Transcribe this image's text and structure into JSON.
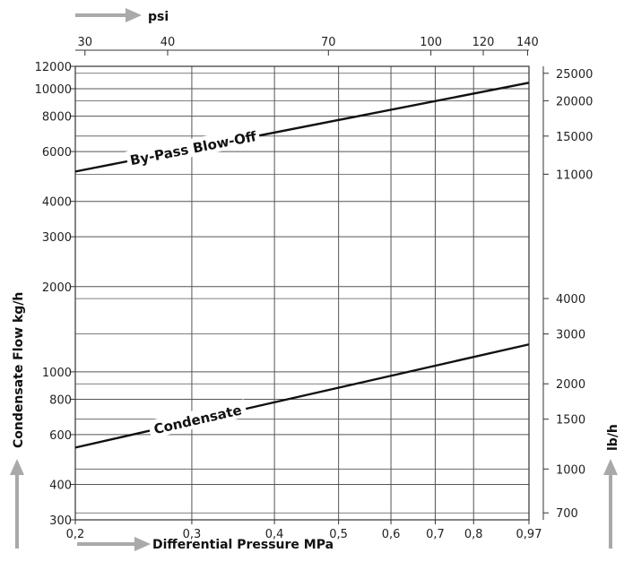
{
  "chart_data": {
    "type": "line",
    "x_scale": "log",
    "y_scale": "log",
    "x_range": [
      0.2,
      0.97
    ],
    "y_range": [
      300,
      12000
    ],
    "xlabel": "Differential Pressure MPa",
    "ylabel": "Condensate Flow kg/h",
    "top_axis_label": "psi",
    "right_axis_label": "lb/h",
    "x_ticks": [
      {
        "value": 0.2,
        "label": "0,2"
      },
      {
        "value": 0.3,
        "label": "0,3"
      },
      {
        "value": 0.4,
        "label": "0,4"
      },
      {
        "value": 0.5,
        "label": "0,5"
      },
      {
        "value": 0.6,
        "label": "0,6"
      },
      {
        "value": 0.7,
        "label": "0,7"
      },
      {
        "value": 0.8,
        "label": "0,8"
      },
      {
        "value": 0.97,
        "label": "0,97"
      }
    ],
    "y_ticks": [
      {
        "value": 300,
        "label": "300"
      },
      {
        "value": 400,
        "label": "400"
      },
      {
        "value": 600,
        "label": "600"
      },
      {
        "value": 800,
        "label": "800"
      },
      {
        "value": 1000,
        "label": "1000"
      },
      {
        "value": 2000,
        "label": "2000"
      },
      {
        "value": 3000,
        "label": "3000"
      },
      {
        "value": 4000,
        "label": "4000"
      },
      {
        "value": 6000,
        "label": "6000"
      },
      {
        "value": 8000,
        "label": "8000"
      },
      {
        "value": 10000,
        "label": "10000"
      },
      {
        "value": 12000,
        "label": "12000"
      }
    ],
    "top_ticks": [
      {
        "value": 30,
        "label": "30"
      },
      {
        "value": 40,
        "label": "40"
      },
      {
        "value": 70,
        "label": "70"
      },
      {
        "value": 100,
        "label": "100"
      },
      {
        "value": 120,
        "label": "120"
      },
      {
        "value": 140,
        "label": "140"
      }
    ],
    "right_ticks": [
      {
        "value": 700,
        "label": "700"
      },
      {
        "value": 1000,
        "label": "1000"
      },
      {
        "value": 1500,
        "label": "1500"
      },
      {
        "value": 2000,
        "label": "2000"
      },
      {
        "value": 3000,
        "label": "3000"
      },
      {
        "value": 4000,
        "label": "4000"
      },
      {
        "value": 11000,
        "label": "11000"
      },
      {
        "value": 15000,
        "label": "15000"
      },
      {
        "value": 20000,
        "label": "20000"
      },
      {
        "value": 25000,
        "label": "25000"
      }
    ],
    "series": [
      {
        "name": "By-Pass Blow-Off",
        "x": [
          0.2,
          0.97
        ],
        "y": [
          5100,
          10500
        ]
      },
      {
        "name": "Condensate",
        "x": [
          0.2,
          0.97
        ],
        "y": [
          540,
          1250
        ]
      }
    ],
    "grid": true
  },
  "colors": {
    "line": "#111111",
    "grid": "#555555",
    "arrow": "#a9a9a9"
  }
}
